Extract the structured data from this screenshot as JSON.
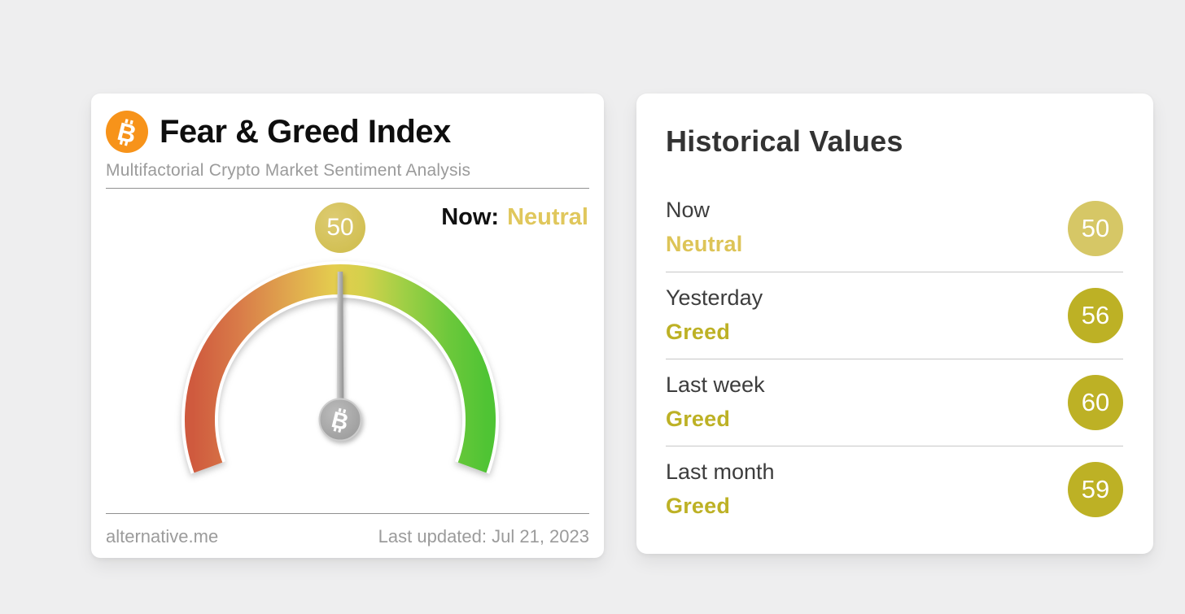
{
  "page": {
    "background": "#eeeeef"
  },
  "fng_card": {
    "title": "Fear & Greed Index",
    "subtitle": "Multifactorial Crypto Market Sentiment Analysis",
    "now_prefix": "Now:",
    "now_classification": "Neutral",
    "now_classification_color": "#e0c75c",
    "gauge_value_badge": "50",
    "gauge_badge_color": "#d5c45e",
    "footer_source": "alternative.me",
    "footer_updated": "Last updated: Jul 21, 2023",
    "bitcoin_orange": "#f7931a"
  },
  "historical_card": {
    "title": "Historical Values",
    "rows": [
      {
        "label": "Now",
        "classification": "Neutral",
        "value": "50",
        "badge_color": "#d6c766",
        "classification_color": "#ddc457"
      },
      {
        "label": "Yesterday",
        "classification": "Greed",
        "value": "56",
        "badge_color": "#bdb125",
        "classification_color": "#bdb125"
      },
      {
        "label": "Last week",
        "classification": "Greed",
        "value": "60",
        "badge_color": "#bdb125",
        "classification_color": "#bdb125"
      },
      {
        "label": "Last month",
        "classification": "Greed",
        "value": "59",
        "badge_color": "#bdb125",
        "classification_color": "#bdb125"
      }
    ]
  },
  "chart_data": {
    "type": "gauge",
    "title": "Fear & Greed Index",
    "value": 50,
    "min": 0,
    "max": 100,
    "classification": "Neutral",
    "arc_span_degrees": 220,
    "scale_colors": [
      "#cf5a3e",
      "#dd8a4a",
      "#e2b14e",
      "#e5d14d",
      "#9ecf45",
      "#4fc434"
    ],
    "needle_color": "#a5a5a5",
    "history": [
      {
        "period": "Now",
        "value": 50,
        "classification": "Neutral"
      },
      {
        "period": "Yesterday",
        "value": 56,
        "classification": "Greed"
      },
      {
        "period": "Last week",
        "value": 60,
        "classification": "Greed"
      },
      {
        "period": "Last month",
        "value": 59,
        "classification": "Greed"
      }
    ]
  }
}
